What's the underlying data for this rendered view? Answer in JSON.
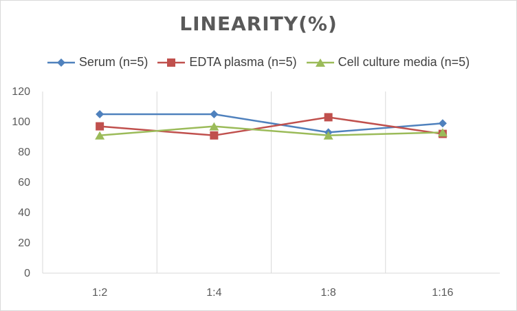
{
  "chart_data": {
    "type": "line",
    "title": "LINEARITY(%)",
    "categories": [
      "1:2",
      "1:4",
      "1:8",
      "1:16"
    ],
    "ylim": [
      0,
      120
    ],
    "yticks": [
      0,
      20,
      40,
      60,
      80,
      100,
      120
    ],
    "grid": "vertical",
    "legend_position": "top",
    "series": [
      {
        "name": "Serum (n=5)",
        "values": [
          105,
          105,
          93,
          99
        ],
        "color": "#4f81bd",
        "marker": "diamond"
      },
      {
        "name": "EDTA plasma (n=5)",
        "values": [
          97,
          91,
          103,
          92
        ],
        "color": "#c0504d",
        "marker": "square"
      },
      {
        "name": "Cell culture media (n=5)",
        "values": [
          91,
          97,
          91,
          93
        ],
        "color": "#9bbb59",
        "marker": "triangle"
      }
    ]
  }
}
